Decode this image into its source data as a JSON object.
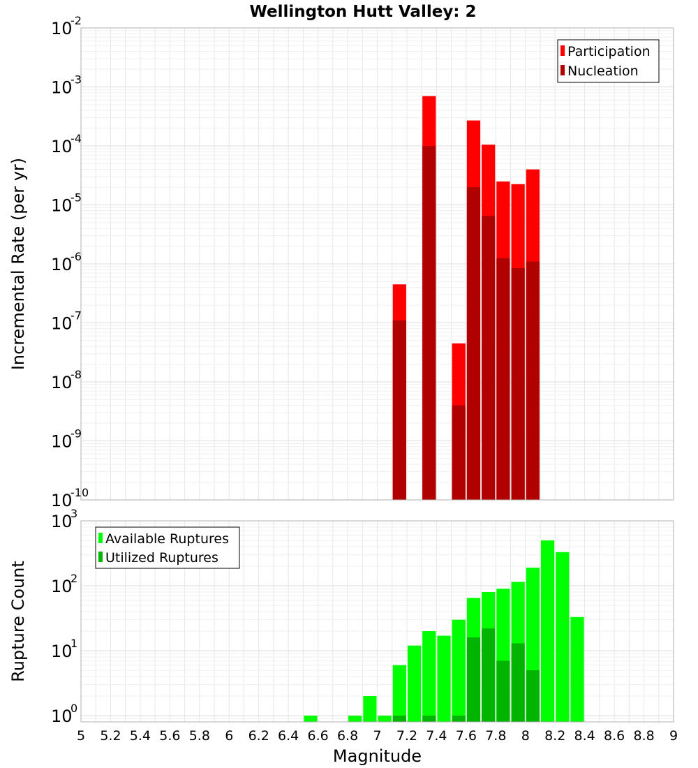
{
  "title": "Wellington Hutt Valley: 2",
  "colors": {
    "participation": "#ff0000",
    "nucleation": "#b00000",
    "available": "#00ff00",
    "utilized": "#00b400",
    "grid": "#e6e6e6",
    "frame": "#b0b0b0"
  },
  "chart_data": [
    {
      "type": "bar",
      "title": "Wellington Hutt Valley: 2",
      "ylabel": "Incremental Rate (per yr)",
      "xlabel": "",
      "x_range": [
        5,
        9
      ],
      "y_scale": "log",
      "ylim": [
        1e-10,
        0.01
      ],
      "ytick_exponents": [
        "-10",
        "-9",
        "-8",
        "-7",
        "-6",
        "-5",
        "-4",
        "-3",
        "-2"
      ],
      "ytick_base": "10",
      "grid": true,
      "legend_position": "top-right",
      "bar_width": 0.1,
      "series": [
        {
          "name": "Participation",
          "x": [
            7.15,
            7.35,
            7.55,
            7.65,
            7.75,
            7.85,
            7.95,
            8.05
          ],
          "values": [
            4.5e-07,
            0.0007,
            4.5e-08,
            0.00027,
            0.000105,
            2.5e-05,
            2.25e-05,
            4e-05
          ]
        },
        {
          "name": "Nucleation",
          "x": [
            7.15,
            7.35,
            7.55,
            7.65,
            7.75,
            7.85,
            7.95,
            8.05
          ],
          "values": [
            1.1e-07,
            0.0001,
            4e-09,
            2e-05,
            6.5e-06,
            1.25e-06,
            8.5e-07,
            1.1e-06
          ]
        }
      ]
    },
    {
      "type": "bar",
      "title": "",
      "ylabel": "Rupture Count",
      "xlabel": "Magnitude",
      "x_range": [
        5,
        9
      ],
      "x_ticks": [
        "5",
        "5.2",
        "5.4",
        "5.6",
        "5.8",
        "6",
        "6.2",
        "6.4",
        "6.6",
        "6.8",
        "7",
        "7.2",
        "7.4",
        "7.6",
        "7.8",
        "8",
        "8.2",
        "8.4",
        "8.6",
        "8.8",
        "9"
      ],
      "y_scale": "log",
      "ylim": [
        0.8,
        1000
      ],
      "ytick_exponents": [
        "0",
        "1",
        "2",
        "3"
      ],
      "ytick_base": "10",
      "grid": true,
      "legend_position": "top-left",
      "bar_width": 0.1,
      "series": [
        {
          "name": "Available Ruptures",
          "x": [
            6.55,
            6.85,
            6.95,
            7.05,
            7.15,
            7.25,
            7.35,
            7.45,
            7.55,
            7.65,
            7.75,
            7.85,
            7.95,
            8.05,
            8.15,
            8.25,
            8.35
          ],
          "values": [
            1,
            1,
            2,
            1,
            6,
            12,
            20,
            17,
            30,
            65,
            80,
            90,
            115,
            190,
            500,
            330,
            33
          ]
        },
        {
          "name": "Utilized Ruptures",
          "x": [
            7.15,
            7.35,
            7.55,
            7.65,
            7.75,
            7.85,
            7.95,
            8.05
          ],
          "values": [
            1,
            1,
            1,
            16,
            22,
            7,
            13,
            5
          ]
        }
      ]
    }
  ]
}
